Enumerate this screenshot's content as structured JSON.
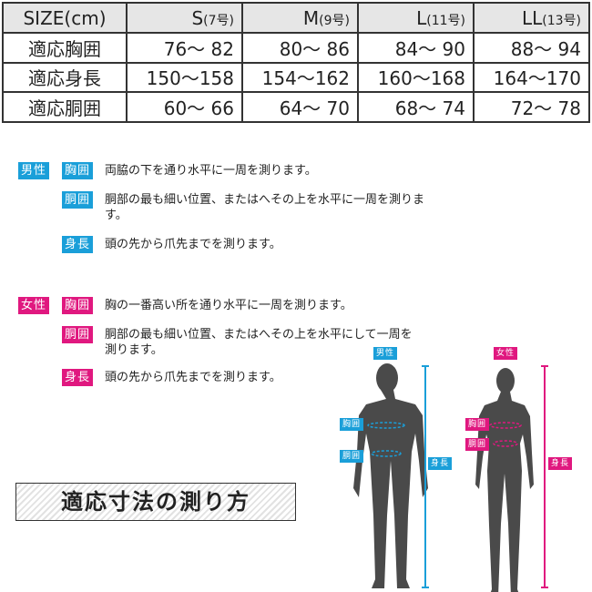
{
  "table": {
    "headers": [
      "SIZE(cm)",
      {
        "size": "S",
        "num": "(7号)"
      },
      {
        "size": "M",
        "num": "(9号)"
      },
      {
        "size": "L",
        "num": "(11号)"
      },
      {
        "size": "LL",
        "num": "(13号)"
      }
    ],
    "rows": [
      [
        "適応胸囲",
        "76〜 82",
        "80〜 86",
        "84〜 90",
        "88〜 94"
      ],
      [
        "適応身長",
        "150〜158",
        "154〜162",
        "160〜168",
        "164〜170"
      ],
      [
        "適応胴囲",
        "60〜 66",
        "64〜 70",
        "68〜 74",
        "72〜 78"
      ]
    ]
  },
  "male": {
    "label": "男性",
    "items": [
      {
        "tag": "胸囲",
        "text": "両脇の下を通り水平に一周を測ります。"
      },
      {
        "tag": "胴囲",
        "text": "胴部の最も細い位置、またはへその上を水平に一周を測ります。"
      },
      {
        "tag": "身長",
        "text": "頭の先から爪先までを測ります。"
      }
    ]
  },
  "female": {
    "label": "女性",
    "items": [
      {
        "tag": "胸囲",
        "text": "胸の一番高い所を通り水平に一周を測ります。"
      },
      {
        "tag": "胴囲",
        "text": "胴部の最も細い位置、またはへその上を水平にして一周を測ります。"
      },
      {
        "tag": "身長",
        "text": "頭の先から爪先までを測ります。"
      }
    ]
  },
  "title": "適応寸法の測り方",
  "colors": {
    "male": "#1a9fd9",
    "female": "#e0187f",
    "silhouette": "#4a4a4a"
  }
}
